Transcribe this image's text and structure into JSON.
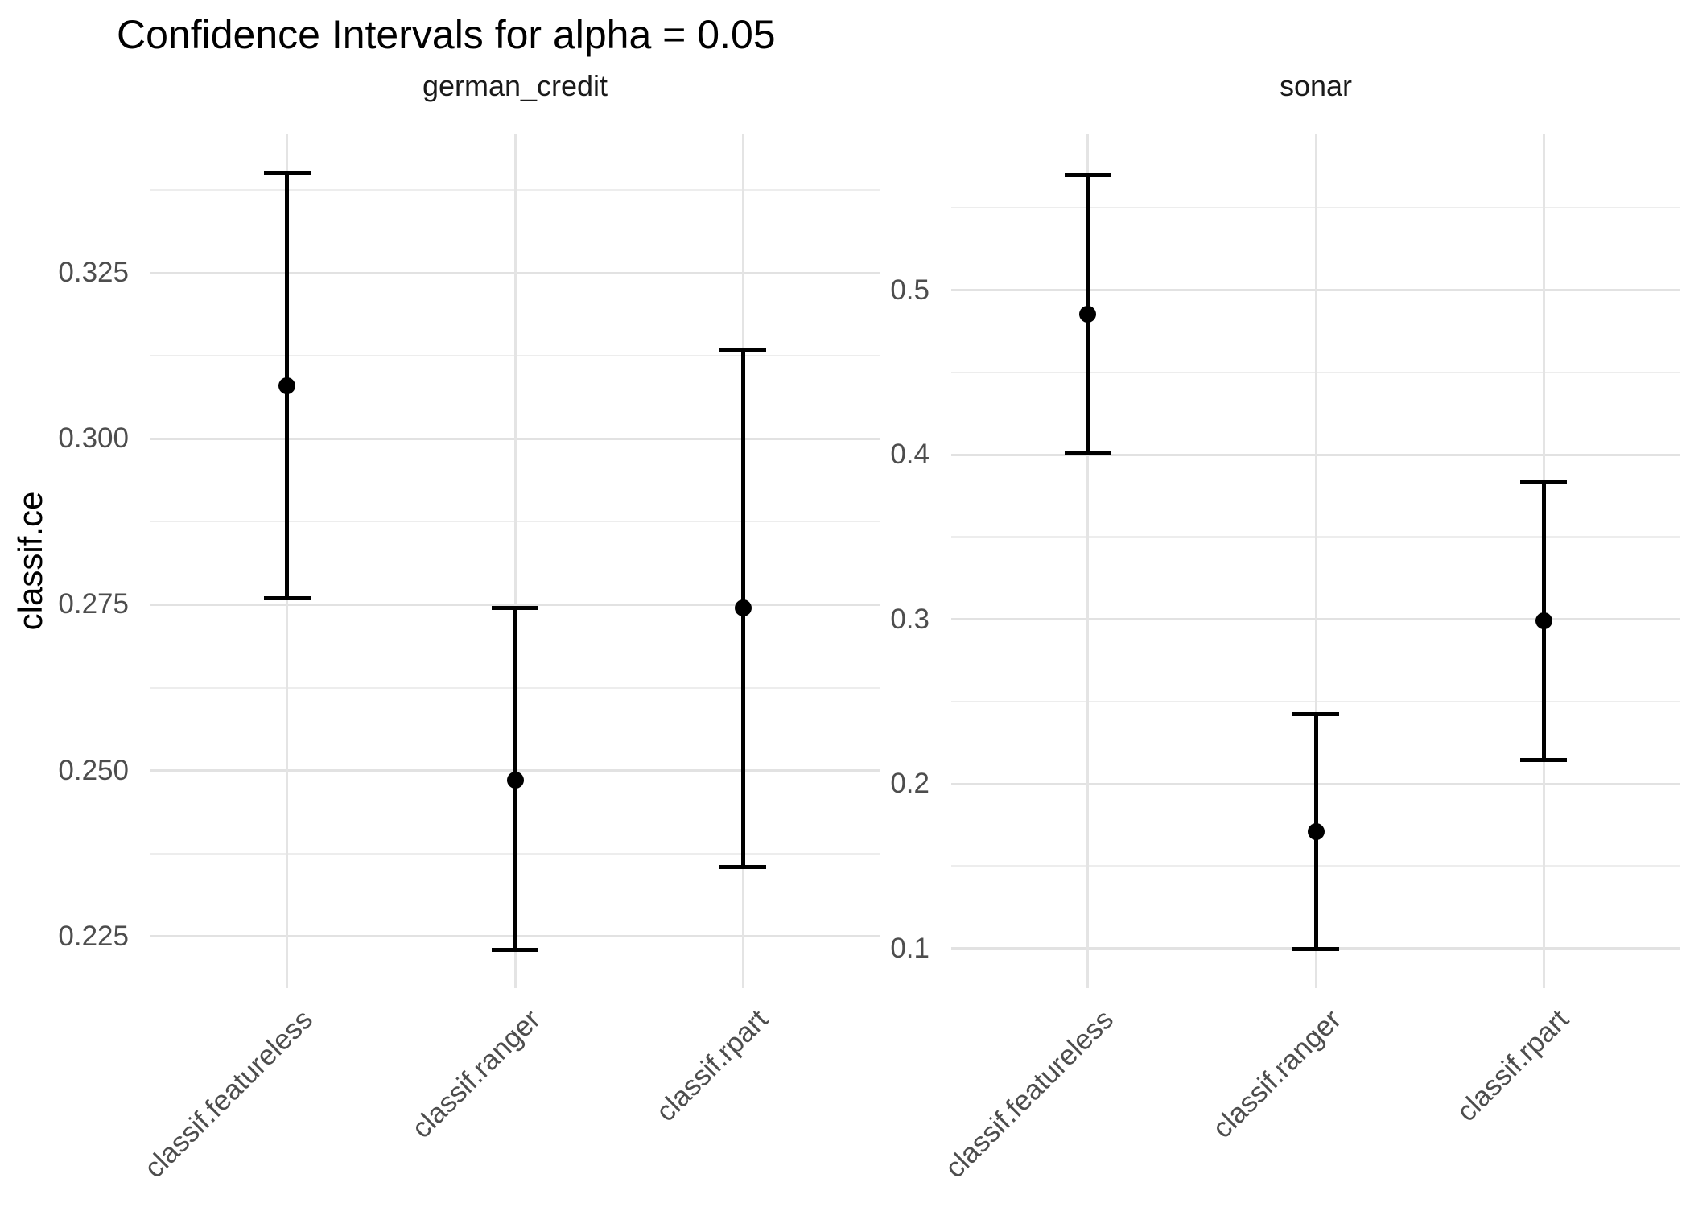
{
  "chart_data": {
    "type": "errorbar",
    "title": "Confidence Intervals for alpha = 0.05",
    "ylabel": "classif.ce",
    "xlabel": "",
    "legend": "none",
    "grid": true,
    "background": "#ffffff",
    "colors": {
      "marks": "#000000",
      "grid_major": "#e2e2e2",
      "grid_minor": "#ededed",
      "tick_labels": "#4d4d4d",
      "strip_labels": "#1a1a1a",
      "title": "#000000"
    },
    "categories": [
      "classif.featureless",
      "classif.ranger",
      "classif.rpart"
    ],
    "facets": [
      {
        "label": "german_credit",
        "ylim": [
          0.2172,
          0.3459
        ],
        "yticks": [
          {
            "value": 0.225,
            "label": "0.225"
          },
          {
            "value": 0.25,
            "label": "0.250"
          },
          {
            "value": 0.275,
            "label": "0.275"
          },
          {
            "value": 0.3,
            "label": "0.300"
          },
          {
            "value": 0.325,
            "label": "0.325"
          }
        ],
        "yticks_minor": [
          0.2375,
          0.2625,
          0.2875,
          0.3125,
          0.3375
        ],
        "series": [
          {
            "learner": "classif.featureless",
            "estimate": 0.308,
            "lower": 0.276,
            "upper": 0.34
          },
          {
            "learner": "classif.ranger",
            "estimate": 0.2485,
            "lower": 0.223,
            "upper": 0.2745
          },
          {
            "learner": "classif.rpart",
            "estimate": 0.2745,
            "lower": 0.2355,
            "upper": 0.3135
          }
        ]
      },
      {
        "label": "sonar",
        "ylim": [
          0.0759,
          0.5946
        ],
        "yticks": [
          {
            "value": 0.1,
            "label": "0.1"
          },
          {
            "value": 0.2,
            "label": "0.2"
          },
          {
            "value": 0.3,
            "label": "0.3"
          },
          {
            "value": 0.4,
            "label": "0.4"
          },
          {
            "value": 0.5,
            "label": "0.5"
          }
        ],
        "yticks_minor": [
          0.15,
          0.25,
          0.35,
          0.45,
          0.55
        ],
        "series": [
          {
            "learner": "classif.featureless",
            "estimate": 0.4855,
            "lower": 0.401,
            "upper": 0.57
          },
          {
            "learner": "classif.ranger",
            "estimate": 0.171,
            "lower": 0.0995,
            "upper": 0.2425
          },
          {
            "learner": "classif.rpart",
            "estimate": 0.299,
            "lower": 0.2145,
            "upper": 0.3835
          }
        ]
      }
    ]
  }
}
